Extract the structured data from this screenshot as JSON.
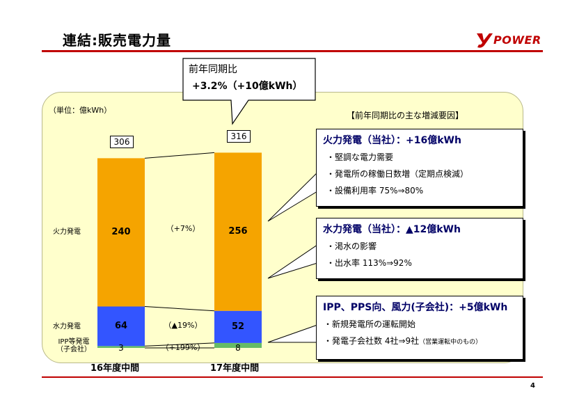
{
  "header": {
    "title": "連結:販売電力量",
    "logo_text": "POWER"
  },
  "callout": {
    "line1": "前年同期比",
    "line2": "+3.2%（+10億kWh）"
  },
  "chart_data": {
    "type": "bar",
    "stacked": true,
    "unit_label": "（単位：億kWh）",
    "categories": [
      "16年度中間",
      "17年度中間"
    ],
    "series": [
      {
        "name": "火力発電",
        "values": [
          240,
          256
        ],
        "color": "#f5a400"
      },
      {
        "name": "水力発電",
        "values": [
          64,
          52
        ],
        "color": "#3355ff"
      },
      {
        "name": "IPP等発電（子会社）",
        "values": [
          3,
          8
        ],
        "color": "#66bb66"
      }
    ],
    "totals": [
      306,
      316
    ],
    "changes": [
      "（+7%）",
      "（▲19%）",
      "（+199%）"
    ]
  },
  "series_labels": {
    "thermal": "火力発電",
    "hydro": "水力発電",
    "ipp_line1": "IPP等発電",
    "ipp_line2": "（子会社）"
  },
  "factors": {
    "header": "【前年同期比の主な増減要因】",
    "thermal": {
      "heading": "火力発電（当社）：+16億kWh",
      "lines": [
        "・堅調な電力需要",
        "・発電所の稼働日数増（定期点検減）",
        "・設備利用率 75%⇒80%"
      ]
    },
    "hydro": {
      "heading": "水力発電（当社）：▲12億kWh",
      "lines": [
        "・渇水の影響",
        "・出水率 113%⇒92%"
      ]
    },
    "ipp": {
      "heading": "IPP、PPS向、風力(子会社)：+5億kWh",
      "lines": [
        "・新規発電所の運転開始",
        "・発電子会社数 4社⇒9社"
      ],
      "note": "（営業運転中のもの）"
    }
  },
  "footer": {
    "page_number": "4"
  },
  "colors": {
    "accent_red": "#c00000",
    "panel_bg": "#ffffcc",
    "heading_navy": "#000066"
  }
}
